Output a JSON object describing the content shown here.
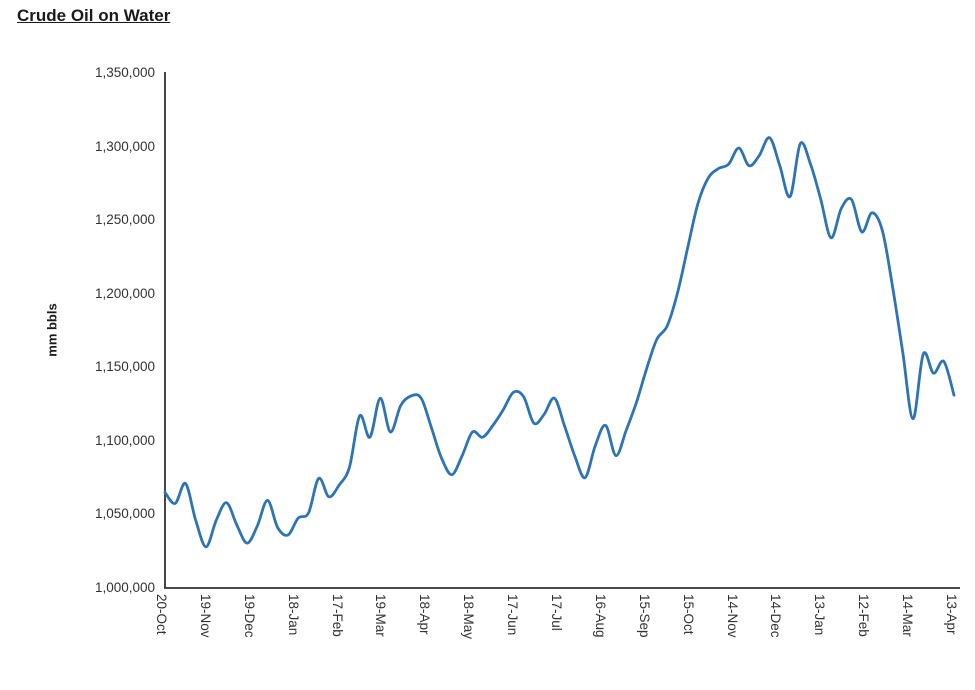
{
  "colors": {
    "line": "#2E74B5",
    "axis": "#333333",
    "text": "#333333",
    "title": "#1A1A1A"
  },
  "chart_data": {
    "type": "line",
    "title": "Crude Oil on Water",
    "xlabel": "",
    "ylabel": "mm bbls",
    "ylim": [
      1000000,
      1350000
    ],
    "y_tick_step": 50000,
    "y_tick_labels": [
      "1,350,000",
      "1,300,000",
      "1,250,000",
      "1,200,000",
      "1,150,000",
      "1,100,000",
      "1,050,000",
      "1,000,000"
    ],
    "x_tick_labels": [
      "20-Oct",
      "19-Nov",
      "19-Dec",
      "18-Jan",
      "17-Feb",
      "19-Mar",
      "18-Apr",
      "18-May",
      "17-Jun",
      "17-Jul",
      "16-Aug",
      "15-Sep",
      "15-Oct",
      "14-Nov",
      "14-Dec",
      "13-Jan",
      "12-Feb",
      "14-Mar",
      "13-Apr"
    ],
    "grid": "off",
    "legend": "none",
    "line_smooth": true,
    "cadence": "weekly",
    "values": [
      1065000,
      1057500,
      1071000,
      1046000,
      1028000,
      1046000,
      1058000,
      1043000,
      1030500,
      1042000,
      1059500,
      1041000,
      1036000,
      1047500,
      1051000,
      1074500,
      1062000,
      1070000,
      1082000,
      1117000,
      1102500,
      1129000,
      1106000,
      1124000,
      1130500,
      1129000,
      1109000,
      1088000,
      1077000,
      1090000,
      1106000,
      1102500,
      1110500,
      1121000,
      1133000,
      1130000,
      1112000,
      1118000,
      1129000,
      1110000,
      1089500,
      1075000,
      1097000,
      1110500,
      1090000,
      1107000,
      1126000,
      1149000,
      1169000,
      1178000,
      1200000,
      1231000,
      1261000,
      1278500,
      1285000,
      1288000,
      1299000,
      1287000,
      1294000,
      1306000,
      1287000,
      1266000,
      1302000,
      1288000,
      1264000,
      1238000,
      1258000,
      1264000,
      1242000,
      1255000,
      1243000,
      1205000,
      1160000,
      1115000,
      1159000,
      1146000,
      1154000,
      1131000
    ]
  }
}
